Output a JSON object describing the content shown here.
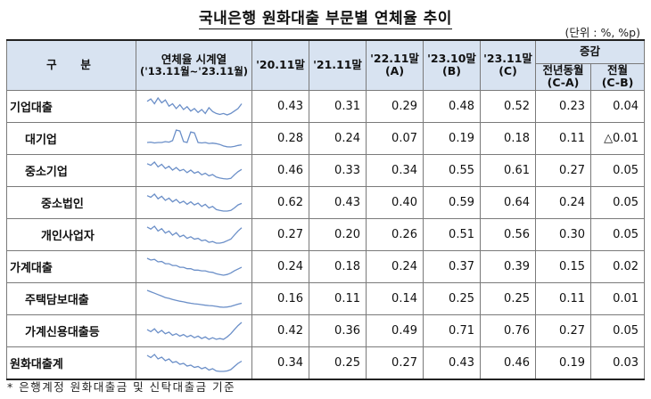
{
  "title": "국내은행 원화대출 부문별 연체율 추이",
  "unit": "(단위 : %, %p)",
  "header": {
    "category": "구  분",
    "spark": [
      "연체율 시계열",
      "('13.11월~'23.11월)"
    ],
    "cols": [
      {
        "line1": "'20.11말",
        "line2": ""
      },
      {
        "line1": "'21.11말",
        "line2": ""
      },
      {
        "line1": "'22.11말",
        "line2": "(A)"
      },
      {
        "line1": "'23.10말",
        "line2": "(B)"
      },
      {
        "line1": "'23.11말",
        "line2": "(C)"
      }
    ],
    "change_group": "증감",
    "change_cols": [
      {
        "line1": "전년동월",
        "line2": "(C-A)"
      },
      {
        "line1": "전월",
        "line2": "(C-B)"
      }
    ]
  },
  "rows": [
    {
      "label": "기업대출",
      "level": 0,
      "values": [
        "0.43",
        "0.31",
        "0.29",
        "0.48",
        "0.52",
        "0.23",
        "0.04"
      ],
      "trend": [
        0.55,
        0.6,
        0.5,
        0.62,
        0.52,
        0.58,
        0.45,
        0.5,
        0.4,
        0.48,
        0.38,
        0.44,
        0.35,
        0.4,
        0.32,
        0.38,
        0.3,
        0.42,
        0.34,
        0.3,
        0.28,
        0.3,
        0.27,
        0.3,
        0.35,
        0.4,
        0.5
      ]
    },
    {
      "label": "대기업",
      "level": 1,
      "values": [
        "0.28",
        "0.24",
        "0.07",
        "0.19",
        "0.18",
        "0.11",
        "△0.01"
      ],
      "trend": [
        0.3,
        0.32,
        0.28,
        0.3,
        0.3,
        0.35,
        0.32,
        0.4,
        0.95,
        0.9,
        0.35,
        0.3,
        0.85,
        0.8,
        0.3,
        0.28,
        0.3,
        0.25,
        0.27,
        0.24,
        0.2,
        0.12,
        0.08,
        0.07,
        0.1,
        0.15,
        0.18
      ]
    },
    {
      "label": "중소기업",
      "level": 1,
      "values": [
        "0.46",
        "0.33",
        "0.34",
        "0.55",
        "0.61",
        "0.27",
        "0.05"
      ],
      "trend": [
        0.8,
        0.75,
        0.85,
        0.7,
        0.78,
        0.65,
        0.72,
        0.6,
        0.68,
        0.58,
        0.62,
        0.52,
        0.6,
        0.5,
        0.55,
        0.45,
        0.5,
        0.42,
        0.46,
        0.38,
        0.35,
        0.33,
        0.32,
        0.34,
        0.45,
        0.55,
        0.62
      ]
    },
    {
      "label": "중소법인",
      "level": 2,
      "values": [
        "0.62",
        "0.43",
        "0.40",
        "0.59",
        "0.64",
        "0.24",
        "0.05"
      ],
      "trend": [
        0.9,
        0.85,
        0.95,
        0.8,
        0.88,
        0.75,
        0.82,
        0.7,
        0.78,
        0.66,
        0.72,
        0.62,
        0.7,
        0.6,
        0.66,
        0.55,
        0.62,
        0.5,
        0.55,
        0.45,
        0.42,
        0.4,
        0.4,
        0.42,
        0.5,
        0.6,
        0.65
      ]
    },
    {
      "label": "개인사업자",
      "level": 2,
      "values": [
        "0.27",
        "0.20",
        "0.26",
        "0.51",
        "0.56",
        "0.30",
        "0.05"
      ],
      "trend": [
        0.6,
        0.55,
        0.62,
        0.5,
        0.56,
        0.45,
        0.5,
        0.4,
        0.46,
        0.36,
        0.4,
        0.32,
        0.36,
        0.3,
        0.32,
        0.26,
        0.28,
        0.22,
        0.24,
        0.2,
        0.2,
        0.22,
        0.26,
        0.3,
        0.4,
        0.5,
        0.58
      ]
    },
    {
      "label": "가계대출",
      "level": 0,
      "values": [
        "0.24",
        "0.18",
        "0.24",
        "0.37",
        "0.39",
        "0.15",
        "0.02"
      ],
      "trend": [
        0.65,
        0.6,
        0.62,
        0.55,
        0.56,
        0.5,
        0.5,
        0.45,
        0.45,
        0.4,
        0.4,
        0.36,
        0.36,
        0.32,
        0.32,
        0.3,
        0.3,
        0.27,
        0.26,
        0.22,
        0.2,
        0.18,
        0.2,
        0.24,
        0.3,
        0.35,
        0.4
      ]
    },
    {
      "label": "주택담보대출",
      "level": 1,
      "values": [
        "0.16",
        "0.11",
        "0.14",
        "0.25",
        "0.25",
        "0.11",
        "0.01"
      ],
      "trend": [
        0.7,
        0.65,
        0.6,
        0.55,
        0.5,
        0.45,
        0.42,
        0.38,
        0.35,
        0.32,
        0.3,
        0.27,
        0.25,
        0.23,
        0.22,
        0.2,
        0.18,
        0.17,
        0.16,
        0.14,
        0.12,
        0.11,
        0.12,
        0.14,
        0.18,
        0.22,
        0.25
      ]
    },
    {
      "label": "가계신용대출등",
      "level": 1,
      "values": [
        "0.42",
        "0.36",
        "0.49",
        "0.71",
        "0.76",
        "0.27",
        "0.05"
      ],
      "trend": [
        0.6,
        0.55,
        0.62,
        0.52,
        0.58,
        0.5,
        0.54,
        0.46,
        0.5,
        0.44,
        0.48,
        0.42,
        0.46,
        0.4,
        0.44,
        0.38,
        0.42,
        0.36,
        0.4,
        0.36,
        0.38,
        0.36,
        0.42,
        0.5,
        0.6,
        0.7,
        0.78
      ]
    },
    {
      "label": "원화대출계",
      "level": 0,
      "values": [
        "0.34",
        "0.25",
        "0.27",
        "0.43",
        "0.46",
        "0.19",
        "0.03"
      ],
      "trend": [
        0.6,
        0.55,
        0.62,
        0.52,
        0.56,
        0.48,
        0.52,
        0.44,
        0.46,
        0.4,
        0.42,
        0.36,
        0.38,
        0.33,
        0.35,
        0.3,
        0.33,
        0.27,
        0.3,
        0.25,
        0.24,
        0.24,
        0.25,
        0.28,
        0.35,
        0.42,
        0.47
      ]
    }
  ],
  "footnote": "* 은행계정 원화대출금 및 신탁대출금 기준",
  "colors": {
    "header_bg": "#d8e3f1",
    "spark_line": "#6b8fc8"
  }
}
